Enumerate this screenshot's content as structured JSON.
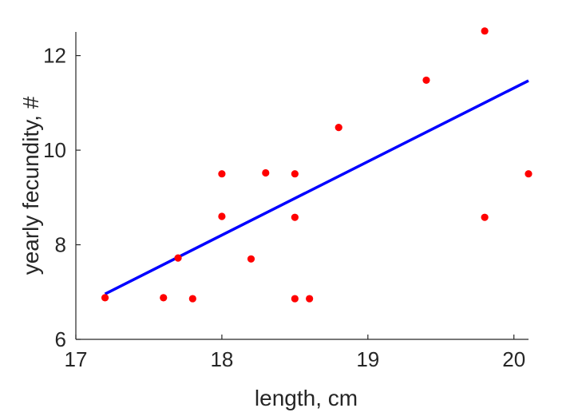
{
  "chart_data": {
    "type": "scatter",
    "xlabel": "length, cm",
    "ylabel": "yearly fecundity, #",
    "xlim": [
      17,
      20.1
    ],
    "ylim": [
      6,
      12.5
    ],
    "xticks": [
      17,
      18,
      19,
      20
    ],
    "yticks": [
      6,
      8,
      10,
      12
    ],
    "xtick_labels": [
      "17",
      "18",
      "19",
      "20"
    ],
    "ytick_labels": [
      "6",
      "8",
      "10",
      "12"
    ],
    "grid": false,
    "legend": "none",
    "series": [
      {
        "type": "scatter",
        "color": "#ff0000",
        "points": [
          {
            "x": 17.2,
            "y": 6.88
          },
          {
            "x": 17.6,
            "y": 6.88
          },
          {
            "x": 17.7,
            "y": 7.72
          },
          {
            "x": 17.8,
            "y": 6.86
          },
          {
            "x": 18.0,
            "y": 9.5
          },
          {
            "x": 18.0,
            "y": 8.6
          },
          {
            "x": 18.2,
            "y": 7.7
          },
          {
            "x": 18.3,
            "y": 9.52
          },
          {
            "x": 18.5,
            "y": 9.5
          },
          {
            "x": 18.5,
            "y": 8.58
          },
          {
            "x": 18.5,
            "y": 6.86
          },
          {
            "x": 18.6,
            "y": 6.86
          },
          {
            "x": 18.8,
            "y": 10.48
          },
          {
            "x": 19.4,
            "y": 11.48
          },
          {
            "x": 19.8,
            "y": 12.52
          },
          {
            "x": 19.8,
            "y": 8.58
          },
          {
            "x": 20.1,
            "y": 9.5
          }
        ]
      },
      {
        "type": "line",
        "color": "#0000ff",
        "points": [
          {
            "x": 17.2,
            "y": 6.96
          },
          {
            "x": 20.1,
            "y": 11.47
          }
        ]
      }
    ]
  }
}
